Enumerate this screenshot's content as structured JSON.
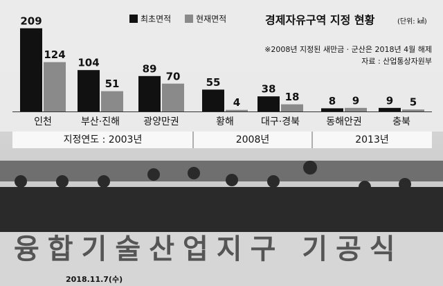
{
  "chart_data": {
    "type": "bar",
    "title": "경제자유구역 지정 현황",
    "unit": "(단위: ㎢)",
    "note": "※2008년 지정된 새만금 · 군산은 2018년 4월 해제",
    "source": "자료 : 산업통상자원부",
    "categories": [
      "인천",
      "부산·진해",
      "광양만권",
      "황해",
      "대구·경북",
      "동해안권",
      "충북"
    ],
    "series": [
      {
        "name": "최초면적",
        "color": "#111111",
        "values": [
          209,
          104,
          89,
          55,
          38,
          8,
          9
        ]
      },
      {
        "name": "현재면적",
        "color": "#8a8a8a",
        "values": [
          124,
          51,
          70,
          4,
          18,
          9,
          5
        ]
      }
    ],
    "groups": [
      {
        "label": "지정연도 : 2003년",
        "categories": [
          0,
          2
        ]
      },
      {
        "label": "2008년",
        "categories": [
          3,
          4
        ]
      },
      {
        "label": "2013년",
        "categories": [
          5,
          6
        ]
      }
    ],
    "legend": "top",
    "photo": {
      "banner": "융합기술산업지구 기공식",
      "date": "2018.11.7(수)"
    }
  }
}
